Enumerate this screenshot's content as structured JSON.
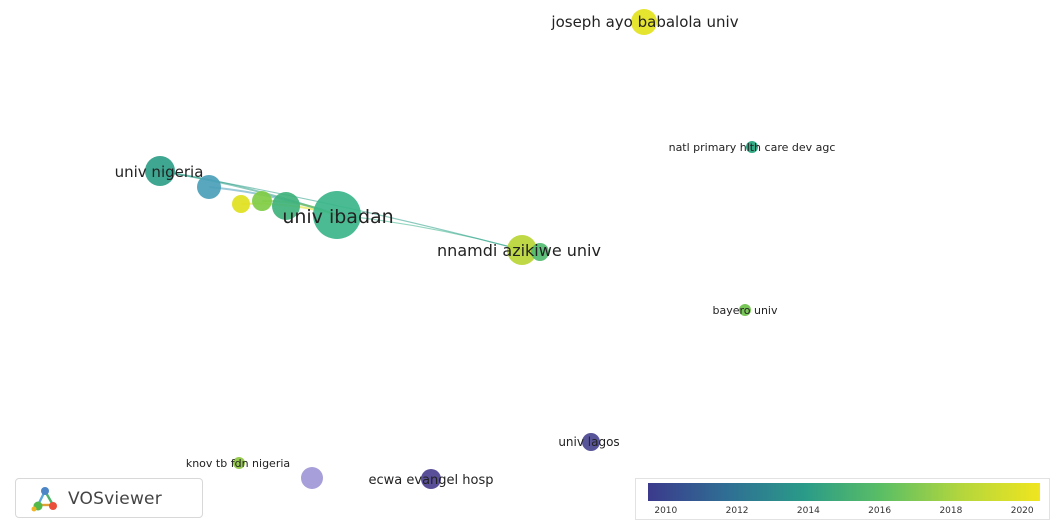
{
  "network": {
    "nodes": [
      {
        "id": "joseph-ayo-babalola-univ",
        "label": "joseph ayo babalola univ",
        "color": "#e3e21c"
      },
      {
        "id": "natl-primary-hlth-care-dev-agc",
        "label": "natl primary hlth care dev agc",
        "color": "#23a37d"
      },
      {
        "id": "univ-nigeria",
        "label": "univ nigeria",
        "color": "#2e9e88"
      },
      {
        "id": "univ-nigeria-satellite",
        "label": "",
        "color": "#4a9fb8"
      },
      {
        "id": "univ-ibadan-satellite-yellow",
        "label": "",
        "color": "#e0e020"
      },
      {
        "id": "univ-ibadan-satellite-green",
        "label": "",
        "color": "#7fcc45"
      },
      {
        "id": "univ-ibadan-satellite-teal",
        "label": "",
        "color": "#3fb27c"
      },
      {
        "id": "univ-ibadan",
        "label": "univ ibadan",
        "color": "#3bb58a"
      },
      {
        "id": "nnamdi-azikiwe-univ",
        "label": "nnamdi azikiwe univ",
        "color": "#b8d635"
      },
      {
        "id": "nnamdi-azikiwe-satellite",
        "label": "",
        "color": "#50bb70"
      },
      {
        "id": "bayero-univ",
        "label": "bayero univ",
        "color": "#6cc04a"
      },
      {
        "id": "univ-lagos",
        "label": "univ lagos",
        "color": "#4a4590"
      },
      {
        "id": "knov-tb-fdn-nigeria",
        "label": "knov tb fdn nigeria",
        "color": "#8dc63f"
      },
      {
        "id": "knov-satellite",
        "label": "",
        "color": "#9e97d6"
      },
      {
        "id": "ecwa-evangel-hosp",
        "label": "ecwa evangel hosp",
        "color": "#4b3f8f"
      }
    ],
    "links": [
      {
        "source": "univ-nigeria",
        "target": "univ-ibadan"
      },
      {
        "source": "univ-nigeria-satellite",
        "target": "univ-ibadan"
      },
      {
        "source": "univ-ibadan-satellite-yellow",
        "target": "univ-ibadan"
      },
      {
        "source": "univ-ibadan-satellite-green",
        "target": "univ-ibadan"
      },
      {
        "source": "univ-ibadan",
        "target": "nnamdi-azikiwe-univ"
      },
      {
        "source": "univ-nigeria",
        "target": "nnamdi-azikiwe-univ"
      }
    ]
  },
  "logo": {
    "text": "VOSviewer"
  },
  "legend": {
    "gradient": [
      "#3b3a8c",
      "#2f6e94",
      "#2a9b88",
      "#5cbf64",
      "#b4d63c",
      "#f0e51f"
    ],
    "ticks": [
      "2010",
      "2012",
      "2014",
      "2016",
      "2018",
      "2020"
    ],
    "min": 2009.5,
    "max": 2020.5
  }
}
